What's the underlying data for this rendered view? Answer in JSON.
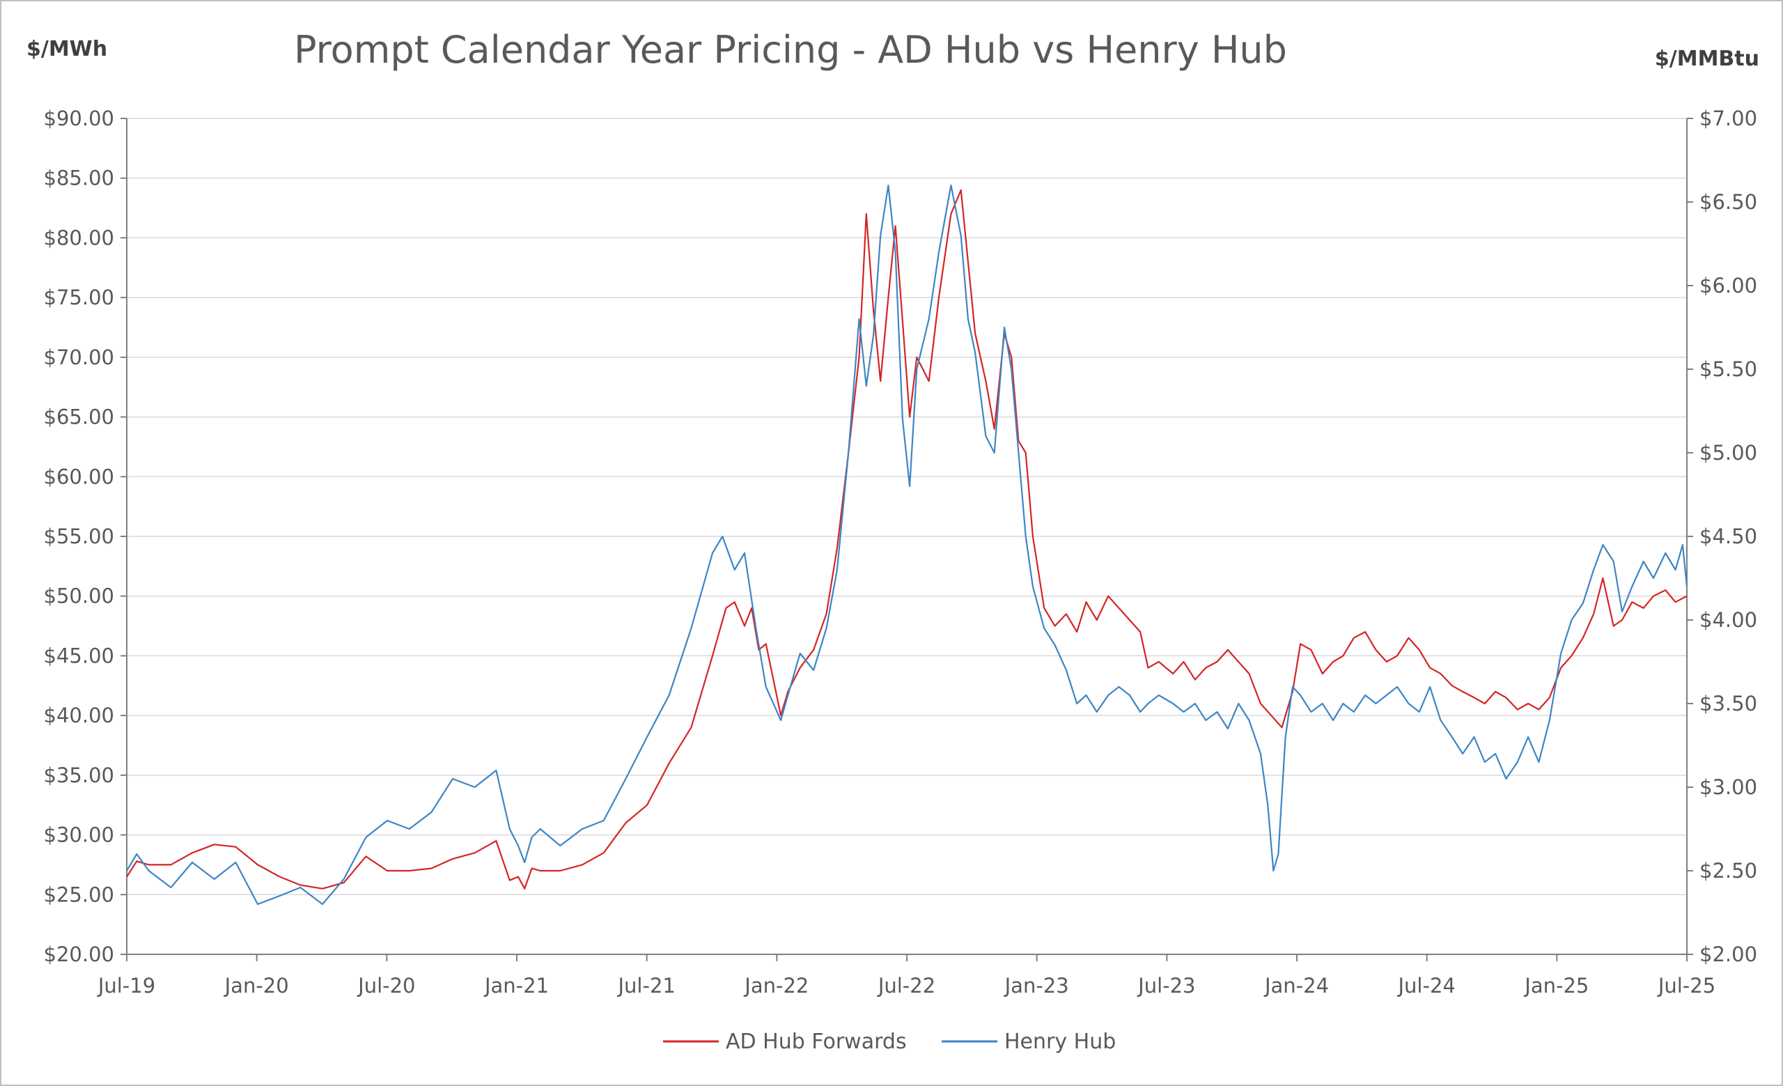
{
  "chart_data": {
    "type": "line",
    "title": "Prompt Calendar Year Pricing - AD Hub vs Henry Hub",
    "y_left_label": "$/MWh",
    "y_right_label": "$/MMBtu",
    "y_left_range": [
      20,
      90
    ],
    "y_right_range": [
      2,
      7
    ],
    "y_left_ticks": [
      "$20.00",
      "$25.00",
      "$30.00",
      "$35.00",
      "$40.00",
      "$45.00",
      "$50.00",
      "$55.00",
      "$60.00",
      "$65.00",
      "$70.00",
      "$75.00",
      "$80.00",
      "$85.00",
      "$90.00"
    ],
    "y_right_ticks": [
      "$2.00",
      "$2.50",
      "$3.00",
      "$3.50",
      "$4.00",
      "$4.50",
      "$5.00",
      "$5.50",
      "$6.00",
      "$6.50",
      "$7.00"
    ],
    "x_ticks": [
      "Jul-19",
      "Jan-20",
      "Jul-20",
      "Jan-21",
      "Jul-21",
      "Jan-22",
      "Jul-22",
      "Jan-23",
      "Jul-23",
      "Jan-24",
      "Jul-24",
      "Jan-25",
      "Jul-25"
    ],
    "x_range": [
      "2019-07",
      "2025-07"
    ],
    "grid": "horizontal",
    "legend_position": "bottom",
    "colors": {
      "ad_hub": "#d62424",
      "henry_hub": "#3d85c6",
      "grid": "#d9d9d9",
      "axis": "#7f7f7f"
    },
    "series": [
      {
        "name": "AD Hub Forwards",
        "axis": "left",
        "points": [
          [
            "2019-07-01",
            26.5
          ],
          [
            "2019-07-15",
            27.8
          ],
          [
            "2019-08-01",
            27.5
          ],
          [
            "2019-09-01",
            27.5
          ],
          [
            "2019-10-01",
            28.5
          ],
          [
            "2019-11-01",
            29.2
          ],
          [
            "2019-12-01",
            29.0
          ],
          [
            "2020-01-01",
            27.5
          ],
          [
            "2020-02-01",
            26.5
          ],
          [
            "2020-03-01",
            25.8
          ],
          [
            "2020-04-01",
            25.5
          ],
          [
            "2020-05-01",
            26.0
          ],
          [
            "2020-06-01",
            28.2
          ],
          [
            "2020-07-01",
            27.0
          ],
          [
            "2020-08-01",
            27.0
          ],
          [
            "2020-09-01",
            27.2
          ],
          [
            "2020-10-01",
            28.0
          ],
          [
            "2020-11-01",
            28.5
          ],
          [
            "2020-12-01",
            29.5
          ],
          [
            "2020-12-20",
            26.2
          ],
          [
            "2021-01-01",
            26.5
          ],
          [
            "2021-01-10",
            25.5
          ],
          [
            "2021-01-20",
            27.2
          ],
          [
            "2021-02-01",
            27.0
          ],
          [
            "2021-03-01",
            27.0
          ],
          [
            "2021-04-01",
            27.5
          ],
          [
            "2021-05-01",
            28.5
          ],
          [
            "2021-06-01",
            31.0
          ],
          [
            "2021-07-01",
            32.5
          ],
          [
            "2021-08-01",
            36.0
          ],
          [
            "2021-09-01",
            39.0
          ],
          [
            "2021-10-01",
            45.0
          ],
          [
            "2021-10-20",
            49.0
          ],
          [
            "2021-11-01",
            49.5
          ],
          [
            "2021-11-15",
            47.5
          ],
          [
            "2021-11-25",
            49.0
          ],
          [
            "2021-12-05",
            45.5
          ],
          [
            "2021-12-15",
            46.0
          ],
          [
            "2022-01-05",
            40.0
          ],
          [
            "2022-01-15",
            42.0
          ],
          [
            "2022-02-01",
            44.0
          ],
          [
            "2022-02-20",
            45.5
          ],
          [
            "2022-03-10",
            48.5
          ],
          [
            "2022-03-25",
            54.0
          ],
          [
            "2022-04-10",
            62.0
          ],
          [
            "2022-04-25",
            70.0
          ],
          [
            "2022-05-05",
            82.0
          ],
          [
            "2022-05-15",
            74.0
          ],
          [
            "2022-05-25",
            68.0
          ],
          [
            "2022-06-05",
            75.0
          ],
          [
            "2022-06-15",
            81.0
          ],
          [
            "2022-06-25",
            73.0
          ],
          [
            "2022-07-05",
            65.0
          ],
          [
            "2022-07-15",
            70.0
          ],
          [
            "2022-08-01",
            68.0
          ],
          [
            "2022-08-15",
            75.0
          ],
          [
            "2022-09-01",
            82.0
          ],
          [
            "2022-09-15",
            84.0
          ],
          [
            "2022-09-25",
            78.0
          ],
          [
            "2022-10-05",
            72.0
          ],
          [
            "2022-10-20",
            68.0
          ],
          [
            "2022-11-01",
            64.0
          ],
          [
            "2022-11-15",
            72.0
          ],
          [
            "2022-11-25",
            70.0
          ],
          [
            "2022-12-05",
            63.0
          ],
          [
            "2022-12-15",
            62.0
          ],
          [
            "2022-12-25",
            55.0
          ],
          [
            "2023-01-10",
            49.0
          ],
          [
            "2023-01-25",
            47.5
          ],
          [
            "2023-02-10",
            48.5
          ],
          [
            "2023-02-25",
            47.0
          ],
          [
            "2023-03-10",
            49.5
          ],
          [
            "2023-03-25",
            48.0
          ],
          [
            "2023-04-10",
            50.0
          ],
          [
            "2023-04-25",
            49.0
          ],
          [
            "2023-05-10",
            48.0
          ],
          [
            "2023-05-25",
            47.0
          ],
          [
            "2023-06-05",
            44.0
          ],
          [
            "2023-06-20",
            44.5
          ],
          [
            "2023-07-10",
            43.5
          ],
          [
            "2023-07-25",
            44.5
          ],
          [
            "2023-08-10",
            43.0
          ],
          [
            "2023-08-25",
            44.0
          ],
          [
            "2023-09-10",
            44.5
          ],
          [
            "2023-09-25",
            45.5
          ],
          [
            "2023-10-10",
            44.5
          ],
          [
            "2023-10-25",
            43.5
          ],
          [
            "2023-11-10",
            41.0
          ],
          [
            "2023-11-25",
            40.0
          ],
          [
            "2023-12-10",
            39.0
          ],
          [
            "2023-12-25",
            42.0
          ],
          [
            "2024-01-05",
            46.0
          ],
          [
            "2024-01-20",
            45.5
          ],
          [
            "2024-02-05",
            43.5
          ],
          [
            "2024-02-20",
            44.5
          ],
          [
            "2024-03-05",
            45.0
          ],
          [
            "2024-03-20",
            46.5
          ],
          [
            "2024-04-05",
            47.0
          ],
          [
            "2024-04-20",
            45.5
          ],
          [
            "2024-05-05",
            44.5
          ],
          [
            "2024-05-20",
            45.0
          ],
          [
            "2024-06-05",
            46.5
          ],
          [
            "2024-06-20",
            45.5
          ],
          [
            "2024-07-05",
            44.0
          ],
          [
            "2024-07-20",
            43.5
          ],
          [
            "2024-08-05",
            42.5
          ],
          [
            "2024-08-20",
            42.0
          ],
          [
            "2024-09-05",
            41.5
          ],
          [
            "2024-09-20",
            41.0
          ],
          [
            "2024-10-05",
            42.0
          ],
          [
            "2024-10-20",
            41.5
          ],
          [
            "2024-11-05",
            40.5
          ],
          [
            "2024-11-20",
            41.0
          ],
          [
            "2024-12-05",
            40.5
          ],
          [
            "2024-12-20",
            41.5
          ],
          [
            "2025-01-05",
            44.0
          ],
          [
            "2025-01-20",
            45.0
          ],
          [
            "2025-02-05",
            46.5
          ],
          [
            "2025-02-20",
            48.5
          ],
          [
            "2025-03-05",
            51.5
          ],
          [
            "2025-03-20",
            47.5
          ],
          [
            "2025-04-01",
            48.0
          ],
          [
            "2025-04-15",
            49.5
          ],
          [
            "2025-05-01",
            49.0
          ],
          [
            "2025-05-15",
            50.0
          ],
          [
            "2025-06-01",
            50.5
          ],
          [
            "2025-06-15",
            49.5
          ],
          [
            "2025-07-01",
            50.0
          ]
        ]
      },
      {
        "name": "Henry Hub",
        "axis": "right",
        "points": [
          [
            "2019-07-01",
            2.5
          ],
          [
            "2019-07-15",
            2.6
          ],
          [
            "2019-08-01",
            2.5
          ],
          [
            "2019-09-01",
            2.4
          ],
          [
            "2019-10-01",
            2.55
          ],
          [
            "2019-11-01",
            2.45
          ],
          [
            "2019-12-01",
            2.55
          ],
          [
            "2020-01-01",
            2.3
          ],
          [
            "2020-02-01",
            2.35
          ],
          [
            "2020-03-01",
            2.4
          ],
          [
            "2020-04-01",
            2.3
          ],
          [
            "2020-05-01",
            2.45
          ],
          [
            "2020-06-01",
            2.7
          ],
          [
            "2020-07-01",
            2.8
          ],
          [
            "2020-08-01",
            2.75
          ],
          [
            "2020-09-01",
            2.85
          ],
          [
            "2020-10-01",
            3.05
          ],
          [
            "2020-11-01",
            3.0
          ],
          [
            "2020-12-01",
            3.1
          ],
          [
            "2020-12-20",
            2.75
          ],
          [
            "2021-01-01",
            2.65
          ],
          [
            "2021-01-10",
            2.55
          ],
          [
            "2021-01-20",
            2.7
          ],
          [
            "2021-02-01",
            2.75
          ],
          [
            "2021-03-01",
            2.65
          ],
          [
            "2021-04-01",
            2.75
          ],
          [
            "2021-05-01",
            2.8
          ],
          [
            "2021-06-01",
            3.05
          ],
          [
            "2021-07-01",
            3.3
          ],
          [
            "2021-08-01",
            3.55
          ],
          [
            "2021-09-01",
            3.95
          ],
          [
            "2021-10-01",
            4.4
          ],
          [
            "2021-10-15",
            4.5
          ],
          [
            "2021-11-01",
            4.3
          ],
          [
            "2021-11-15",
            4.4
          ],
          [
            "2021-12-01",
            3.95
          ],
          [
            "2021-12-15",
            3.6
          ],
          [
            "2022-01-05",
            3.4
          ],
          [
            "2022-01-15",
            3.55
          ],
          [
            "2022-02-01",
            3.8
          ],
          [
            "2022-02-20",
            3.7
          ],
          [
            "2022-03-10",
            3.95
          ],
          [
            "2022-03-25",
            4.3
          ],
          [
            "2022-04-10",
            5.0
          ],
          [
            "2022-04-25",
            5.8
          ],
          [
            "2022-05-05",
            5.4
          ],
          [
            "2022-05-15",
            5.7
          ],
          [
            "2022-05-25",
            6.3
          ],
          [
            "2022-06-05",
            6.6
          ],
          [
            "2022-06-15",
            6.2
          ],
          [
            "2022-06-25",
            5.2
          ],
          [
            "2022-07-05",
            4.8
          ],
          [
            "2022-07-15",
            5.5
          ],
          [
            "2022-08-01",
            5.8
          ],
          [
            "2022-08-15",
            6.2
          ],
          [
            "2022-09-01",
            6.6
          ],
          [
            "2022-09-15",
            6.3
          ],
          [
            "2022-09-25",
            5.8
          ],
          [
            "2022-10-05",
            5.6
          ],
          [
            "2022-10-20",
            5.1
          ],
          [
            "2022-11-01",
            5.0
          ],
          [
            "2022-11-15",
            5.75
          ],
          [
            "2022-11-25",
            5.5
          ],
          [
            "2022-12-05",
            5.0
          ],
          [
            "2022-12-15",
            4.5
          ],
          [
            "2022-12-25",
            4.2
          ],
          [
            "2023-01-10",
            3.95
          ],
          [
            "2023-01-25",
            3.85
          ],
          [
            "2023-02-10",
            3.7
          ],
          [
            "2023-02-25",
            3.5
          ],
          [
            "2023-03-10",
            3.55
          ],
          [
            "2023-03-25",
            3.45
          ],
          [
            "2023-04-10",
            3.55
          ],
          [
            "2023-04-25",
            3.6
          ],
          [
            "2023-05-10",
            3.55
          ],
          [
            "2023-05-25",
            3.45
          ],
          [
            "2023-06-05",
            3.5
          ],
          [
            "2023-06-20",
            3.55
          ],
          [
            "2023-07-10",
            3.5
          ],
          [
            "2023-07-25",
            3.45
          ],
          [
            "2023-08-10",
            3.5
          ],
          [
            "2023-08-25",
            3.4
          ],
          [
            "2023-09-10",
            3.45
          ],
          [
            "2023-09-25",
            3.35
          ],
          [
            "2023-10-10",
            3.5
          ],
          [
            "2023-10-25",
            3.4
          ],
          [
            "2023-11-10",
            3.2
          ],
          [
            "2023-11-20",
            2.9
          ],
          [
            "2023-11-28",
            2.5
          ],
          [
            "2023-12-05",
            2.6
          ],
          [
            "2023-12-15",
            3.3
          ],
          [
            "2023-12-25",
            3.6
          ],
          [
            "2024-01-05",
            3.55
          ],
          [
            "2024-01-20",
            3.45
          ],
          [
            "2024-02-05",
            3.5
          ],
          [
            "2024-02-20",
            3.4
          ],
          [
            "2024-03-05",
            3.5
          ],
          [
            "2024-03-20",
            3.45
          ],
          [
            "2024-04-05",
            3.55
          ],
          [
            "2024-04-20",
            3.5
          ],
          [
            "2024-05-05",
            3.55
          ],
          [
            "2024-05-20",
            3.6
          ],
          [
            "2024-06-05",
            3.5
          ],
          [
            "2024-06-20",
            3.45
          ],
          [
            "2024-07-05",
            3.6
          ],
          [
            "2024-07-20",
            3.4
          ],
          [
            "2024-08-05",
            3.3
          ],
          [
            "2024-08-20",
            3.2
          ],
          [
            "2024-09-05",
            3.3
          ],
          [
            "2024-09-20",
            3.15
          ],
          [
            "2024-10-05",
            3.2
          ],
          [
            "2024-10-20",
            3.05
          ],
          [
            "2024-11-05",
            3.15
          ],
          [
            "2024-11-20",
            3.3
          ],
          [
            "2024-12-05",
            3.15
          ],
          [
            "2024-12-20",
            3.4
          ],
          [
            "2025-01-05",
            3.8
          ],
          [
            "2025-01-20",
            4.0
          ],
          [
            "2025-02-05",
            4.1
          ],
          [
            "2025-02-20",
            4.3
          ],
          [
            "2025-03-05",
            4.45
          ],
          [
            "2025-03-20",
            4.35
          ],
          [
            "2025-04-01",
            4.05
          ],
          [
            "2025-04-15",
            4.2
          ],
          [
            "2025-05-01",
            4.35
          ],
          [
            "2025-05-15",
            4.25
          ],
          [
            "2025-06-01",
            4.4
          ],
          [
            "2025-06-15",
            4.3
          ],
          [
            "2025-06-25",
            4.45
          ],
          [
            "2025-07-01",
            4.2
          ]
        ]
      }
    ]
  }
}
